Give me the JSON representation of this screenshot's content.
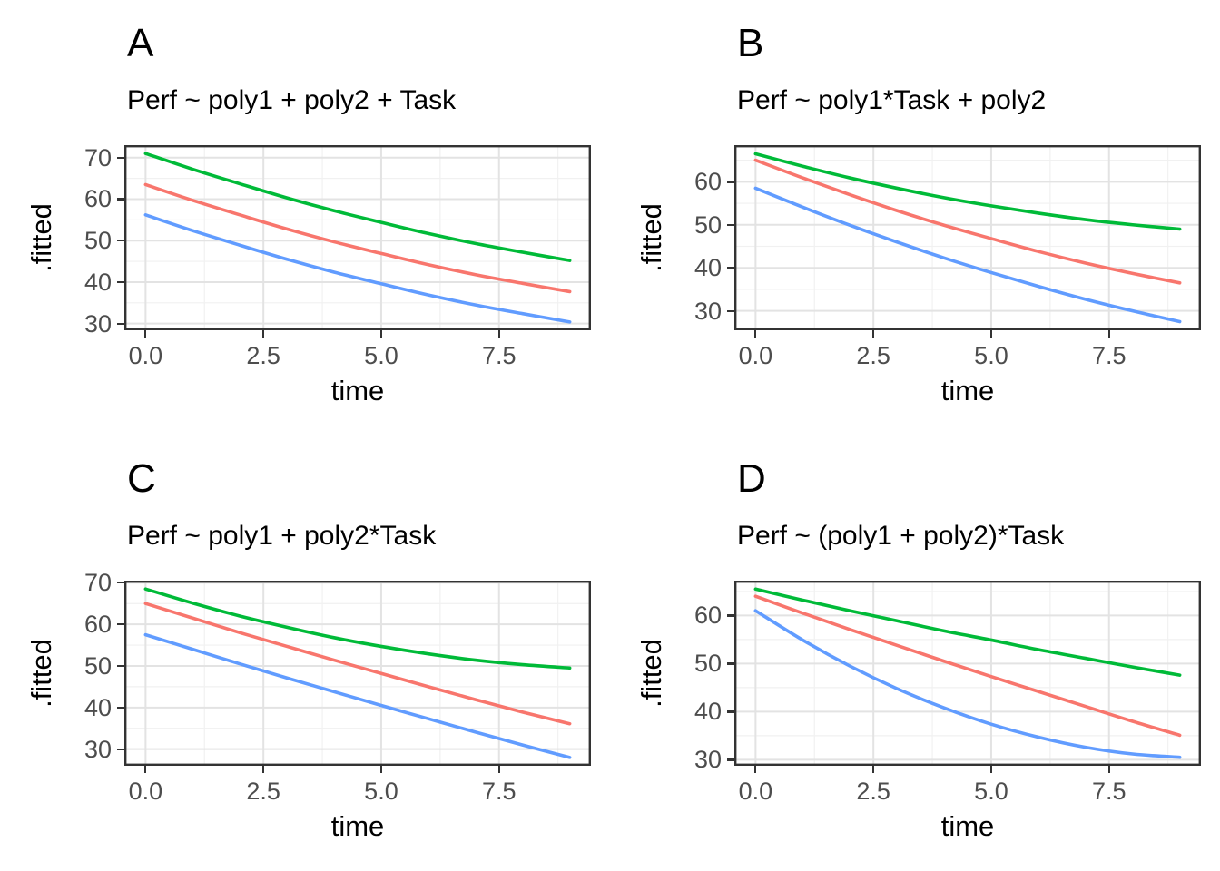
{
  "figure": {
    "background": "#FFFFFF",
    "panel_layout": "2x2",
    "x_axis_label": "time",
    "y_axis_label": ".fitted"
  },
  "palette": {
    "green": "#00BA38",
    "red": "#F8766D",
    "blue": "#619CFF"
  },
  "axis_style": {
    "tick_label_color": "#4D4D4D",
    "grid_major_color": "#E3E3E3",
    "grid_minor_color": "#F1F1F1",
    "panel_border_color": "#333333",
    "panel_background": "#FFFFFF"
  },
  "chart_data": [
    {
      "tag": "A",
      "title": "Perf ~ poly1 + poly2 + Task",
      "type": "line",
      "xlabel": "time",
      "ylabel": ".fitted",
      "xlim": [
        -0.45,
        9.45
      ],
      "ylim": [
        28.4,
        73.0
      ],
      "x_ticks": [
        0,
        2.5,
        5,
        7.5
      ],
      "x_tick_labels": [
        "0.0",
        "2.5",
        "5.0",
        "7.5"
      ],
      "y_ticks": [
        30,
        40,
        50,
        60,
        70
      ],
      "y_tick_labels": [
        "30",
        "40",
        "50",
        "60",
        "70"
      ],
      "x_minor_gridlines": [
        1.25,
        3.75,
        6.25,
        8.75
      ],
      "y_minor_gridlines": [
        35,
        45,
        55,
        65
      ],
      "grid": true,
      "legend": "none",
      "x": [
        0,
        1,
        2,
        3,
        4,
        5,
        6,
        7,
        8,
        9
      ],
      "series": [
        {
          "name": "task-green",
          "color": "#00BA38",
          "values": [
            71.0,
            67.2,
            63.7,
            60.3,
            57.2,
            54.4,
            51.7,
            49.3,
            47.2,
            45.2
          ]
        },
        {
          "name": "task-red",
          "color": "#F8766D",
          "values": [
            63.5,
            59.7,
            56.2,
            52.8,
            49.7,
            46.9,
            44.2,
            41.8,
            39.7,
            37.7
          ]
        },
        {
          "name": "task-blue",
          "color": "#619CFF",
          "values": [
            56.2,
            52.4,
            48.9,
            45.5,
            42.4,
            39.6,
            36.9,
            34.5,
            32.4,
            30.4
          ]
        }
      ]
    },
    {
      "tag": "B",
      "title": "Perf ~ poly1*Task + poly2",
      "type": "line",
      "xlabel": "time",
      "ylabel": ".fitted",
      "xlim": [
        -0.45,
        9.45
      ],
      "ylim": [
        25.5,
        68.5
      ],
      "x_ticks": [
        0,
        2.5,
        5,
        7.5
      ],
      "x_tick_labels": [
        "0.0",
        "2.5",
        "5.0",
        "7.5"
      ],
      "y_ticks": [
        30,
        40,
        50,
        60
      ],
      "y_tick_labels": [
        "30",
        "40",
        "50",
        "60"
      ],
      "x_minor_gridlines": [
        1.25,
        3.75,
        6.25,
        8.75
      ],
      "y_minor_gridlines": [
        35,
        45,
        55,
        65
      ],
      "grid": true,
      "legend": "none",
      "x": [
        0,
        1,
        2,
        3,
        4,
        5,
        6,
        7,
        8,
        9
      ],
      "series": [
        {
          "name": "task-green",
          "color": "#00BA38",
          "values": [
            66.5,
            63.6,
            60.9,
            58.5,
            56.3,
            54.4,
            52.7,
            51.2,
            50.0,
            49.0
          ]
        },
        {
          "name": "task-red",
          "color": "#F8766D",
          "values": [
            65.0,
            60.9,
            57.0,
            53.3,
            49.9,
            46.8,
            43.8,
            41.1,
            38.7,
            36.5
          ]
        },
        {
          "name": "task-blue",
          "color": "#619CFF",
          "values": [
            58.5,
            54.1,
            49.9,
            46.0,
            42.3,
            38.9,
            35.7,
            32.7,
            30.0,
            27.5
          ]
        }
      ]
    },
    {
      "tag": "C",
      "title": "Perf ~ poly1 + poly2*Task",
      "type": "line",
      "xlabel": "time",
      "ylabel": ".fitted",
      "xlim": [
        -0.45,
        9.45
      ],
      "ylim": [
        26.0,
        70.5
      ],
      "x_ticks": [
        0,
        2.5,
        5,
        7.5
      ],
      "x_tick_labels": [
        "0.0",
        "2.5",
        "5.0",
        "7.5"
      ],
      "y_ticks": [
        30,
        40,
        50,
        60,
        70
      ],
      "y_tick_labels": [
        "30",
        "40",
        "50",
        "60",
        "70"
      ],
      "x_minor_gridlines": [
        1.25,
        3.75,
        6.25,
        8.75
      ],
      "y_minor_gridlines": [
        35,
        45,
        55,
        65
      ],
      "grid": true,
      "legend": "none",
      "x": [
        0,
        1,
        2,
        3,
        4,
        5,
        6,
        7,
        8,
        9
      ],
      "series": [
        {
          "name": "task-green",
          "color": "#00BA38",
          "values": [
            68.5,
            65.1,
            62.0,
            59.3,
            56.8,
            54.7,
            52.9,
            51.4,
            50.3,
            49.5
          ]
        },
        {
          "name": "task-red",
          "color": "#F8766D",
          "values": [
            65.0,
            61.5,
            58.0,
            54.7,
            51.4,
            48.2,
            45.0,
            41.9,
            38.9,
            36.1
          ]
        },
        {
          "name": "task-blue",
          "color": "#619CFF",
          "values": [
            57.5,
            54.0,
            50.5,
            47.1,
            43.8,
            40.5,
            37.3,
            34.1,
            31.0,
            28.0
          ]
        }
      ]
    },
    {
      "tag": "D",
      "title": "Perf ~ (poly1 + poly2)*Task",
      "type": "line",
      "xlabel": "time",
      "ylabel": ".fitted",
      "xlim": [
        -0.45,
        9.45
      ],
      "ylim": [
        28.75,
        67.25
      ],
      "x_ticks": [
        0,
        2.5,
        5,
        7.5
      ],
      "x_tick_labels": [
        "0.0",
        "2.5",
        "5.0",
        "7.5"
      ],
      "y_ticks": [
        30,
        40,
        50,
        60
      ],
      "y_tick_labels": [
        "30",
        "40",
        "50",
        "60"
      ],
      "x_minor_gridlines": [
        1.25,
        3.75,
        6.25,
        8.75
      ],
      "y_minor_gridlines": [
        35,
        45,
        55,
        65
      ],
      "grid": true,
      "legend": "none",
      "x": [
        0,
        1,
        2,
        3,
        4,
        5,
        6,
        7,
        8,
        9
      ],
      "series": [
        {
          "name": "task-green",
          "color": "#00BA38",
          "values": [
            65.5,
            63.2,
            61.0,
            58.9,
            56.8,
            54.9,
            52.9,
            51.1,
            49.3,
            47.6
          ]
        },
        {
          "name": "task-red",
          "color": "#F8766D",
          "values": [
            64.0,
            60.5,
            57.1,
            53.8,
            50.5,
            47.3,
            44.2,
            41.1,
            38.0,
            35.1
          ]
        },
        {
          "name": "task-blue",
          "color": "#619CFF",
          "values": [
            61.0,
            54.9,
            49.5,
            44.8,
            40.8,
            37.4,
            34.7,
            32.6,
            31.2,
            30.5
          ]
        }
      ]
    }
  ]
}
